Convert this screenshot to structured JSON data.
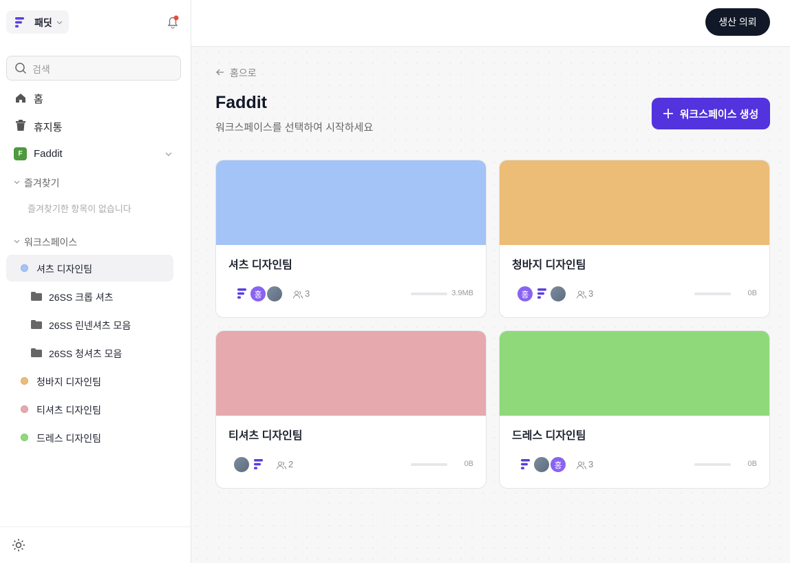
{
  "sidebar": {
    "brand": "패딧",
    "search_placeholder": "검색",
    "nav": [
      "홈",
      "휴지통"
    ],
    "workspace_group": {
      "badge": "F",
      "name": "Faddit"
    },
    "favorites": {
      "title": "즐겨찾기",
      "empty": "즐겨찾기한 항목이 없습니다"
    },
    "workspaces": {
      "title": "워크스페이스",
      "items": [
        {
          "name": "셔츠 디자인팀",
          "color": "#a4c3f7",
          "folders": [
            "26SS 크롭 셔츠",
            "26SS 린넨셔츠 모음",
            "26SS 청셔츠 모음"
          ]
        },
        {
          "name": "청바지 디자인팀",
          "color": "#ebbd76"
        },
        {
          "name": "티셔츠 디자인팀",
          "color": "#e6a9ae"
        },
        {
          "name": "드레스 디자인팀",
          "color": "#8fd97b"
        }
      ]
    }
  },
  "header": {
    "button": "생산 의뢰"
  },
  "main": {
    "back": "홈으로",
    "title": "Faddit",
    "subtitle": "워크스페이스를 선택하여 시작하세요",
    "create_button": "워크스페이스 생성",
    "cards": [
      {
        "name": "셔츠 디자인팀",
        "color": "#a4c3f7",
        "initial": "홍",
        "members": 3,
        "size": "3.9MB"
      },
      {
        "name": "청바지 디자인팀",
        "color": "#ebbd76",
        "initial": "홍",
        "members": 3,
        "size": "0B"
      },
      {
        "name": "티셔츠 디자인팀",
        "color": "#e6a9ae",
        "members": 2,
        "size": "0B"
      },
      {
        "name": "드레스 디자인팀",
        "color": "#8fd97b",
        "initial": "홍",
        "members": 3,
        "size": "0B"
      }
    ]
  }
}
